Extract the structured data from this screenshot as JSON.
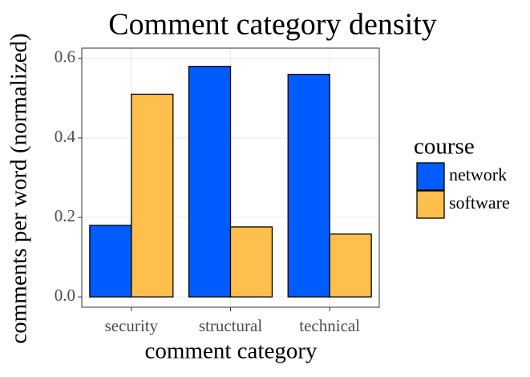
{
  "chart_data": {
    "type": "bar",
    "title": "Comment category density",
    "x_label": "comment category",
    "y_label": "comments per word (normalized)",
    "categories": [
      "security",
      "structural",
      "technical"
    ],
    "legend_title": "course",
    "series": [
      {
        "name": "network",
        "color": "#005cff",
        "values": [
          0.18,
          0.58,
          0.56
        ]
      },
      {
        "name": "software",
        "color": "#ffbf4d",
        "values": [
          0.51,
          0.176,
          0.158
        ]
      }
    ],
    "ylim": [
      -0.026,
      0.626
    ],
    "yticks": [
      {
        "value": 0,
        "label": "0.0"
      },
      0.2,
      0.4,
      0.6
    ],
    "grid": true,
    "legend_position": "right"
  }
}
